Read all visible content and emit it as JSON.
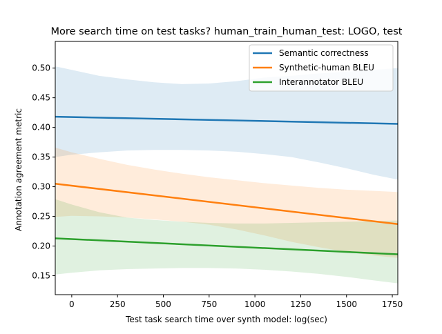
{
  "chart_data": {
    "type": "line",
    "title": "More search time on test tasks? human_train_human_test: LOGO, test",
    "xlabel": "Test task search time over synth model: log(sec)",
    "ylabel": "Annotation agreement metric",
    "xlim": [
      -90,
      1780
    ],
    "ylim": [
      0.118,
      0.545
    ],
    "x_ticks": [
      0,
      250,
      500,
      750,
      1000,
      1250,
      1500,
      1750
    ],
    "y_ticks": [
      0.15,
      0.2,
      0.25,
      0.3,
      0.35,
      0.4,
      0.45,
      0.5
    ],
    "legend_position": "top-right",
    "grid": false,
    "series": [
      {
        "name": "Semantic correctness",
        "color": "#1f77b4",
        "x": [
          -90,
          1780
        ],
        "y": [
          0.418,
          0.406
        ],
        "band_x": [
          -90,
          0,
          150,
          300,
          450,
          600,
          750,
          900,
          1050,
          1200,
          1350,
          1500,
          1650,
          1780
        ],
        "band_upper": [
          0.503,
          0.497,
          0.487,
          0.481,
          0.476,
          0.473,
          0.474,
          0.478,
          0.484,
          0.487,
          0.491,
          0.494,
          0.497,
          0.5
        ],
        "band_lower": [
          0.35,
          0.354,
          0.358,
          0.361,
          0.362,
          0.362,
          0.361,
          0.359,
          0.355,
          0.35,
          0.341,
          0.331,
          0.32,
          0.312
        ]
      },
      {
        "name": "Synthetic-human BLEU",
        "color": "#ff7f0e",
        "x": [
          -90,
          1780
        ],
        "y": [
          0.305,
          0.237
        ],
        "band_x": [
          -90,
          0,
          150,
          300,
          450,
          600,
          750,
          900,
          1050,
          1200,
          1350,
          1500,
          1650,
          1780
        ],
        "band_upper": [
          0.366,
          0.358,
          0.347,
          0.337,
          0.329,
          0.322,
          0.316,
          0.311,
          0.306,
          0.302,
          0.298,
          0.295,
          0.293,
          0.291
        ],
        "band_lower": [
          0.249,
          0.251,
          0.25,
          0.248,
          0.245,
          0.241,
          0.236,
          0.228,
          0.218,
          0.207,
          0.198,
          0.19,
          0.184,
          0.18
        ]
      },
      {
        "name": "Interannotator BLEU",
        "color": "#2ca02c",
        "x": [
          -90,
          1780
        ],
        "y": [
          0.213,
          0.186
        ],
        "band_x": [
          -90,
          0,
          150,
          300,
          450,
          600,
          750,
          900,
          1050,
          1200,
          1350,
          1500,
          1650,
          1780
        ],
        "band_upper": [
          0.279,
          0.27,
          0.257,
          0.248,
          0.244,
          0.241,
          0.239,
          0.238,
          0.238,
          0.239,
          0.24,
          0.241,
          0.242,
          0.243
        ],
        "band_lower": [
          0.152,
          0.155,
          0.159,
          0.161,
          0.162,
          0.163,
          0.163,
          0.162,
          0.16,
          0.157,
          0.153,
          0.148,
          0.142,
          0.137
        ]
      }
    ]
  }
}
